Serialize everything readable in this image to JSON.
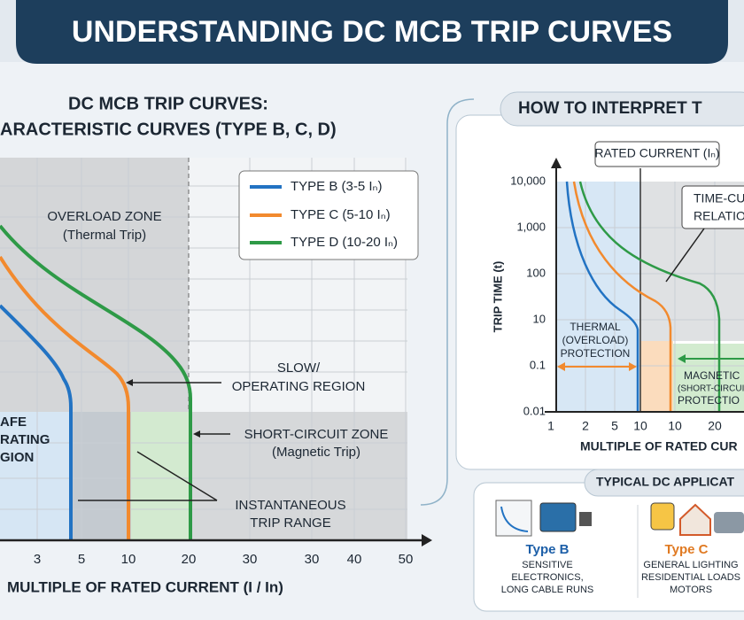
{
  "header": {
    "title": "UNDERSTANDING DC MCB TRIP CURVES"
  },
  "left_chart": {
    "title": [
      "DC MCB TRIP CURVES:",
      "ARACTERISTIC CURVES (TYPE B, C, D)"
    ],
    "legend": [
      "TYPE B (3-5 Iₙ)",
      "TYPE C (5-10 Iₙ)",
      "TYPE D (10-20 Iₙ)"
    ],
    "overload_zone": [
      "OVERLOAD ZONE",
      "(Thermal Trip)"
    ],
    "slow_region": [
      "SLOW/",
      "OPERATING REGION"
    ],
    "short_circuit_zone": [
      "SHORT-CIRCUIT ZONE",
      "(Magnetic Trip)"
    ],
    "instantaneous": [
      "INSTANTANEOUS",
      "TRIP RANGE"
    ],
    "safe_region": [
      "AFE",
      "RATING",
      "GION"
    ],
    "x_ticks": [
      "3",
      "5",
      "10",
      "20",
      "30",
      "30",
      "40",
      "50"
    ],
    "x_label": "MULTIPLE OF RATED CURRENT (I / In)"
  },
  "right_panel": {
    "title": "HOW TO INTERPRET T",
    "rated_current": "RATED CURRENT (Iₙ)",
    "time_current": [
      "TIME-CU",
      "RELATIO"
    ],
    "y_label": "TRIP TIME (t)",
    "y_ticks": [
      "10,000",
      "1,000",
      "100",
      "10",
      "0.1",
      "0.01"
    ],
    "x_ticks": [
      "1",
      "2",
      "5",
      "10",
      "10",
      "20"
    ],
    "x_label": "MULTIPLE OF RATED CUR",
    "thermal": [
      "THERMAL",
      "(OVERLOAD)",
      "PROTECTION"
    ],
    "magnetic": [
      "MAGNETIC",
      "(SHORT-CIRCUI",
      "PROTECTIO"
    ]
  },
  "applications": {
    "title": "TYPICAL DC APPLICAT",
    "type_b": {
      "name": "Type B",
      "lines": [
        "SENSITIVE",
        "ELECTRONICS,",
        "LONG CABLE RUNS"
      ]
    },
    "type_c": {
      "name": "Type C",
      "lines": [
        "GENERAL LIGHTING",
        "RESIDENTIAL LOADS",
        "MOTORS"
      ]
    }
  }
}
